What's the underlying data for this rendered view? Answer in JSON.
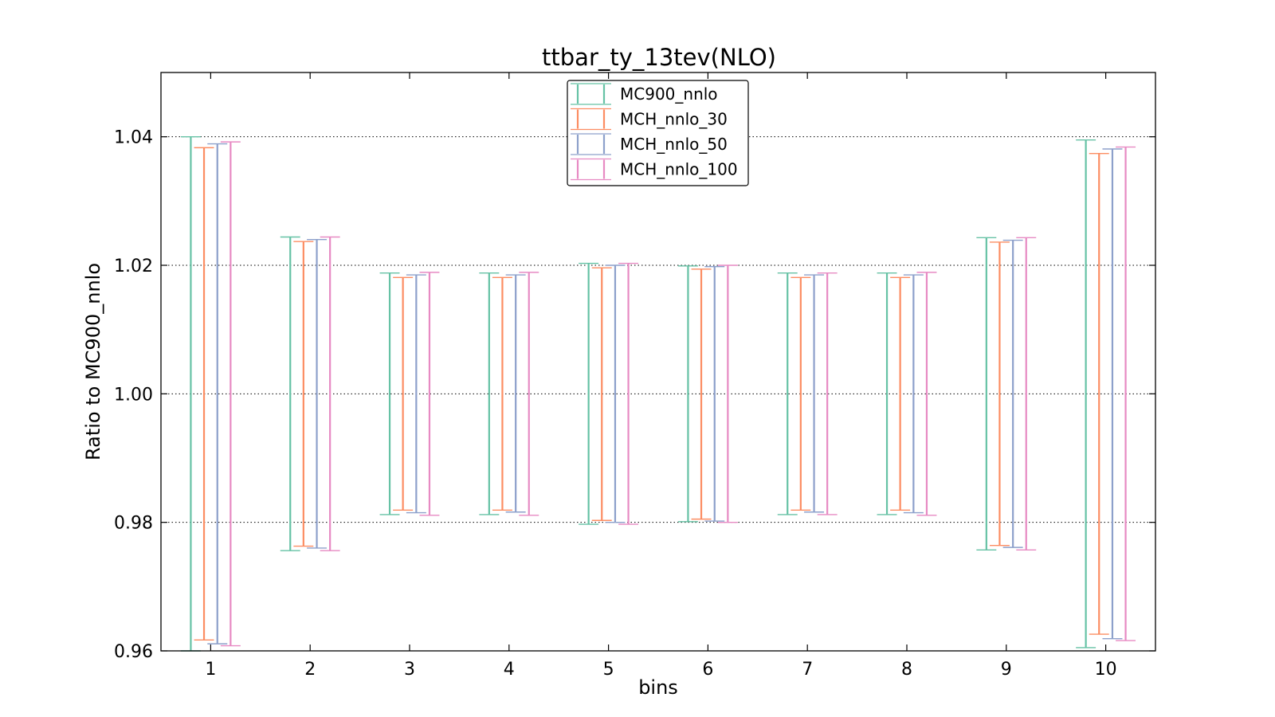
{
  "chart_data": {
    "type": "errorbar",
    "title": "ttbar_ty_13tev(NLO)",
    "xlabel": "bins",
    "ylabel": "Ratio to MC900_nnlo",
    "xlim": [
      0.5,
      10.5
    ],
    "ylim": [
      0.96,
      1.05
    ],
    "yticks": [
      0.96,
      0.98,
      1.0,
      1.02,
      1.04
    ],
    "ytick_labels": [
      "0.96",
      "0.98",
      "1.00",
      "1.02",
      "1.04"
    ],
    "xticks": [
      1,
      2,
      3,
      4,
      5,
      6,
      7,
      8,
      9,
      10
    ],
    "xtick_labels": [
      "1",
      "2",
      "3",
      "4",
      "5",
      "6",
      "7",
      "8",
      "9",
      "10"
    ],
    "grid": "horizontal dotted at y ticks",
    "legend_position": "top-center",
    "series": [
      {
        "name": "MC900_nnlo",
        "color": "#66c2a5",
        "lower": [
          0.96,
          0.9756,
          0.9812,
          0.9812,
          0.9797,
          0.9801,
          0.9812,
          0.9812,
          0.9757,
          0.9605
        ],
        "upper": [
          1.04,
          1.0244,
          1.0188,
          1.0188,
          1.0203,
          1.0199,
          1.0188,
          1.0188,
          1.0243,
          1.0395
        ]
      },
      {
        "name": "MCH_nnlo_30",
        "color": "#fc8d62",
        "lower": [
          0.9617,
          0.9763,
          0.9819,
          0.9819,
          0.9803,
          0.9805,
          0.9819,
          0.9819,
          0.9764,
          0.9626
        ],
        "upper": [
          1.0383,
          1.0237,
          1.0181,
          1.0181,
          1.0196,
          1.0194,
          1.0181,
          1.0181,
          1.0236,
          1.0374
        ]
      },
      {
        "name": "MCH_nnlo_50",
        "color": "#8da0cb",
        "lower": [
          0.9611,
          0.976,
          0.9815,
          0.9816,
          0.98,
          0.9802,
          0.9816,
          0.9815,
          0.9761,
          0.9619
        ],
        "upper": [
          1.0389,
          1.024,
          1.0185,
          1.0185,
          1.02,
          1.0198,
          1.0185,
          1.0185,
          1.0239,
          1.0381
        ]
      },
      {
        "name": "MCH_nnlo_100",
        "color": "#e78ac3",
        "lower": [
          0.9608,
          0.9756,
          0.9811,
          0.9811,
          0.9797,
          0.98,
          0.9812,
          0.9811,
          0.9757,
          0.9616
        ],
        "upper": [
          1.0392,
          1.0244,
          1.0189,
          1.0189,
          1.0203,
          1.02,
          1.0188,
          1.0189,
          1.0243,
          1.0384
        ]
      }
    ]
  }
}
